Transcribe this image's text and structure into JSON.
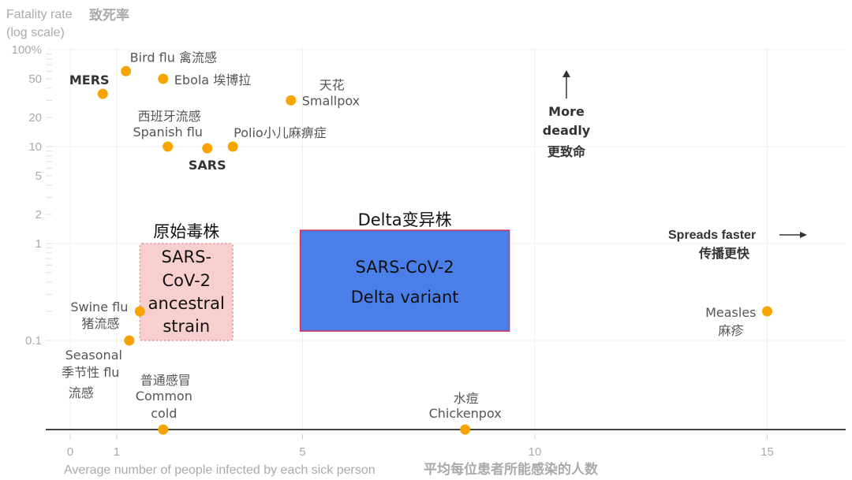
{
  "chart_data": {
    "type": "scatter",
    "y_title": [
      "Fatality rate",
      "致死率",
      "(log scale)"
    ],
    "x_title": [
      "Average number of people infected by each sick person",
      "平均每位患者所能感染的人数"
    ],
    "y_scale": "log",
    "xlim": [
      -0.5,
      16.7
    ],
    "ylim": [
      0.01,
      100
    ],
    "x_ticks": [
      0,
      1,
      5,
      10,
      15
    ],
    "y_ticks": [
      {
        "value": 100,
        "label": "100%"
      },
      {
        "value": 50,
        "label": "50"
      },
      {
        "value": 20,
        "label": "20"
      },
      {
        "value": 10,
        "label": "10"
      },
      {
        "value": 5,
        "label": "5"
      },
      {
        "value": 2,
        "label": "2"
      },
      {
        "value": 1,
        "label": "1"
      },
      {
        "value": 0.1,
        "label": "0.1"
      }
    ],
    "grid": true,
    "point_color": "#F7A400",
    "points": [
      {
        "x": 0.7,
        "y": 35,
        "labels": [
          "MERS"
        ],
        "bold": true
      },
      {
        "x": 1.2,
        "y": 60,
        "labels": [
          "Bird flu 禽流感"
        ]
      },
      {
        "x": 2.0,
        "y": 50,
        "labels": [
          "Ebola 埃博拉"
        ]
      },
      {
        "x": 4.75,
        "y": 30,
        "labels": [
          "天花",
          "Smallpox"
        ]
      },
      {
        "x": 2.1,
        "y": 10,
        "labels": [
          "西班牙流感",
          "Spanish flu"
        ]
      },
      {
        "x": 2.95,
        "y": 9.6,
        "labels": [
          "SARS"
        ],
        "bold": true
      },
      {
        "x": 3.5,
        "y": 10,
        "labels": [
          "Polio小儿麻痹症"
        ]
      },
      {
        "x": 1.5,
        "y": 0.2,
        "labels": [
          "Swine flu",
          "猪流感"
        ]
      },
      {
        "x": 1.27,
        "y": 0.1,
        "labels": [
          "Seasonal",
          "季节性 flu",
          "流感"
        ]
      },
      {
        "x": 2.0,
        "y": 0.012,
        "labels": [
          "普通感冒",
          "Common",
          "cold"
        ]
      },
      {
        "x": 8.5,
        "y": 0.012,
        "labels": [
          "水痘",
          "Chickenpox"
        ]
      },
      {
        "x": 15.0,
        "y": 0.2,
        "labels": [
          "Measles",
          "麻疹"
        ]
      }
    ],
    "regions": [
      {
        "title": "原始毒株",
        "lines": [
          "SARS-",
          "CoV-2",
          "ancestral",
          "strain"
        ],
        "x_range": [
          1.5,
          3.5
        ],
        "y_range": [
          0.1,
          1
        ],
        "fill": "#F8CFCF",
        "border": "#E08A8A",
        "border_style": "dotted"
      },
      {
        "title": "Delta变异株",
        "lines": [
          "SARS-CoV-2",
          "Delta variant"
        ],
        "x_range": [
          4.95,
          9.45
        ],
        "y_range": [
          0.125,
          1.37
        ],
        "fill": "#4A7FEA",
        "border": "#D0305A",
        "border_style": "solid"
      }
    ],
    "annotations": [
      {
        "lines": [
          "More",
          "deadly",
          "更致命"
        ],
        "arrow": "up"
      },
      {
        "lines": [
          "Spreads faster",
          "传播更快"
        ],
        "arrow": "right"
      }
    ]
  }
}
